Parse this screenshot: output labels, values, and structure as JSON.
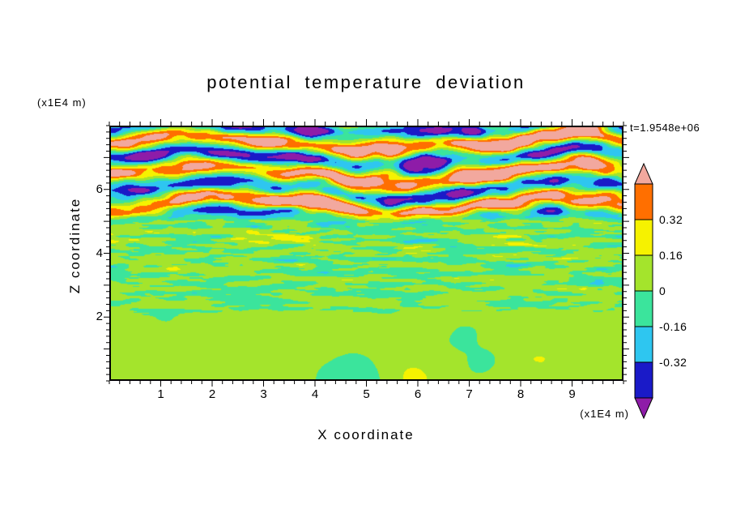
{
  "chart_data": {
    "type": "heatmap",
    "title": "potential temperature deviation",
    "xlabel": "X coordinate",
    "ylabel": "Z coordinate",
    "x_unit": "(x1E4 m)",
    "z_unit": "(x1E4 m)",
    "timestamp": "t=1.9548e+06",
    "xlim": [
      0,
      10
    ],
    "zlim": [
      0,
      8
    ],
    "x_ticks": [
      1,
      2,
      3,
      4,
      5,
      6,
      7,
      8,
      9
    ],
    "z_ticks": [
      2,
      4,
      6
    ],
    "grid": false,
    "legend_position": "right-colorbar",
    "colorbar": {
      "levels": [
        -0.48,
        -0.32,
        -0.16,
        0,
        0.16,
        0.32,
        0.48
      ],
      "labels": [
        "0.32",
        "0.16",
        "0",
        "-0.16",
        "-0.32"
      ],
      "label_values": [
        0.32,
        0.16,
        0,
        -0.16,
        -0.32
      ],
      "colors_bottom_to_top": [
        "#8E1CA8",
        "#1A1AC8",
        "#2EC6F0",
        "#3BE49C",
        "#A4E42C",
        "#F6F200",
        "#FF6F00",
        "#F2A89E"
      ],
      "arrow_low_color": "#8E1CA8",
      "arrow_high_color": "#F2A89E"
    },
    "field_structure": {
      "description": "Filled-contour turbulence field of potential temperature deviation: smooth near-zero (yellow-green / spring-green) layer below z=2; fine horizontal striations (green/cyan with yellow, orange-red and dark-blue streaks) for 2<z<5; strong coarse horizontal bands (salmon-pink, purple, dark blue) for 5<z<8.",
      "seed": 7,
      "layers": [
        {
          "z_range": [
            0,
            2.1
          ],
          "amplitude": 0.1,
          "bias": 0.05,
          "character": "coarse smooth blobs near zero"
        },
        {
          "z_range": [
            2.1,
            5.2
          ],
          "amplitude": 0.3,
          "bias": 0.0,
          "character": "fine horizontal striations"
        },
        {
          "z_range": [
            5.2,
            8
          ],
          "amplitude": 0.62,
          "bias": 0.05,
          "character": "coarse alternating horizontal bands"
        }
      ]
    }
  }
}
